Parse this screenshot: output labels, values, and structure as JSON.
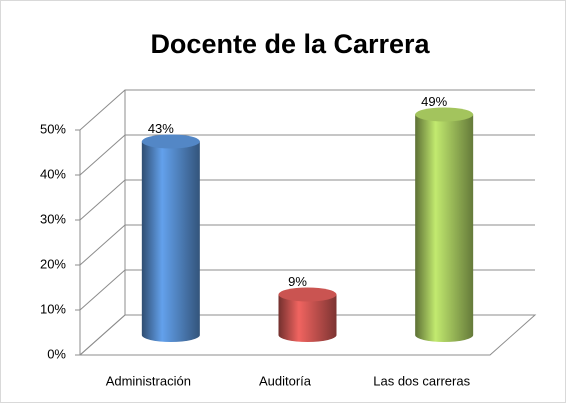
{
  "chart_data": {
    "type": "bar3d",
    "title": "Docente de la Carrera",
    "categories": [
      "Administración",
      "Auditoría",
      "Las dos carreras"
    ],
    "values": [
      43,
      9,
      49
    ],
    "value_labels": [
      "43%",
      "9%",
      "49%"
    ],
    "colors": [
      "#4f81bd",
      "#c0504d",
      "#9bbb59"
    ],
    "ylim": [
      0,
      50
    ],
    "yticks": [
      {
        "value": 0,
        "label": "0%"
      },
      {
        "value": 10,
        "label": "10%"
      },
      {
        "value": 20,
        "label": "20%"
      },
      {
        "value": 30,
        "label": "30%"
      },
      {
        "value": 40,
        "label": "40%"
      },
      {
        "value": 50,
        "label": "50%"
      }
    ],
    "grid": true
  }
}
